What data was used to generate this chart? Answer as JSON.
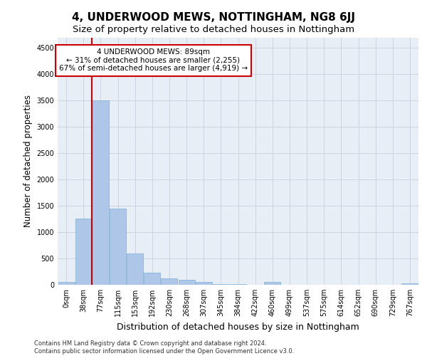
{
  "title": "4, UNDERWOOD MEWS, NOTTINGHAM, NG8 6JJ",
  "subtitle": "Size of property relative to detached houses in Nottingham",
  "xlabel": "Distribution of detached houses by size in Nottingham",
  "ylabel": "Number of detached properties",
  "bar_labels": [
    "0sqm",
    "38sqm",
    "77sqm",
    "115sqm",
    "153sqm",
    "192sqm",
    "230sqm",
    "268sqm",
    "307sqm",
    "345sqm",
    "384sqm",
    "422sqm",
    "460sqm",
    "499sqm",
    "537sqm",
    "575sqm",
    "614sqm",
    "652sqm",
    "690sqm",
    "729sqm",
    "767sqm"
  ],
  "bar_values": [
    50,
    1255,
    3500,
    1450,
    600,
    230,
    120,
    90,
    60,
    12,
    10,
    0,
    55,
    0,
    0,
    0,
    0,
    0,
    0,
    0,
    30
  ],
  "bar_color": "#aec6e8",
  "bar_edge_color": "#7fafd4",
  "vline_x": 1.5,
  "vline_color": "#cc0000",
  "property_sqm": 89,
  "annotation_text": "4 UNDERWOOD MEWS: 89sqm\n← 31% of detached houses are smaller (2,255)\n67% of semi-detached houses are larger (4,919) →",
  "annotation_box_color": "#ffffff",
  "annotation_box_edge_color": "#cc0000",
  "ylim": [
    0,
    4700
  ],
  "yticks": [
    0,
    500,
    1000,
    1500,
    2000,
    2500,
    3000,
    3500,
    4000,
    4500
  ],
  "footer_line1": "Contains HM Land Registry data © Crown copyright and database right 2024.",
  "footer_line2": "Contains public sector information licensed under the Open Government Licence v3.0.",
  "bg_color": "#ffffff",
  "grid_color": "#c8d0dc",
  "title_fontsize": 11,
  "subtitle_fontsize": 9.5,
  "axis_label_fontsize": 8.5,
  "tick_fontsize": 7,
  "annotation_fontsize": 7.5,
  "footer_fontsize": 6.0
}
